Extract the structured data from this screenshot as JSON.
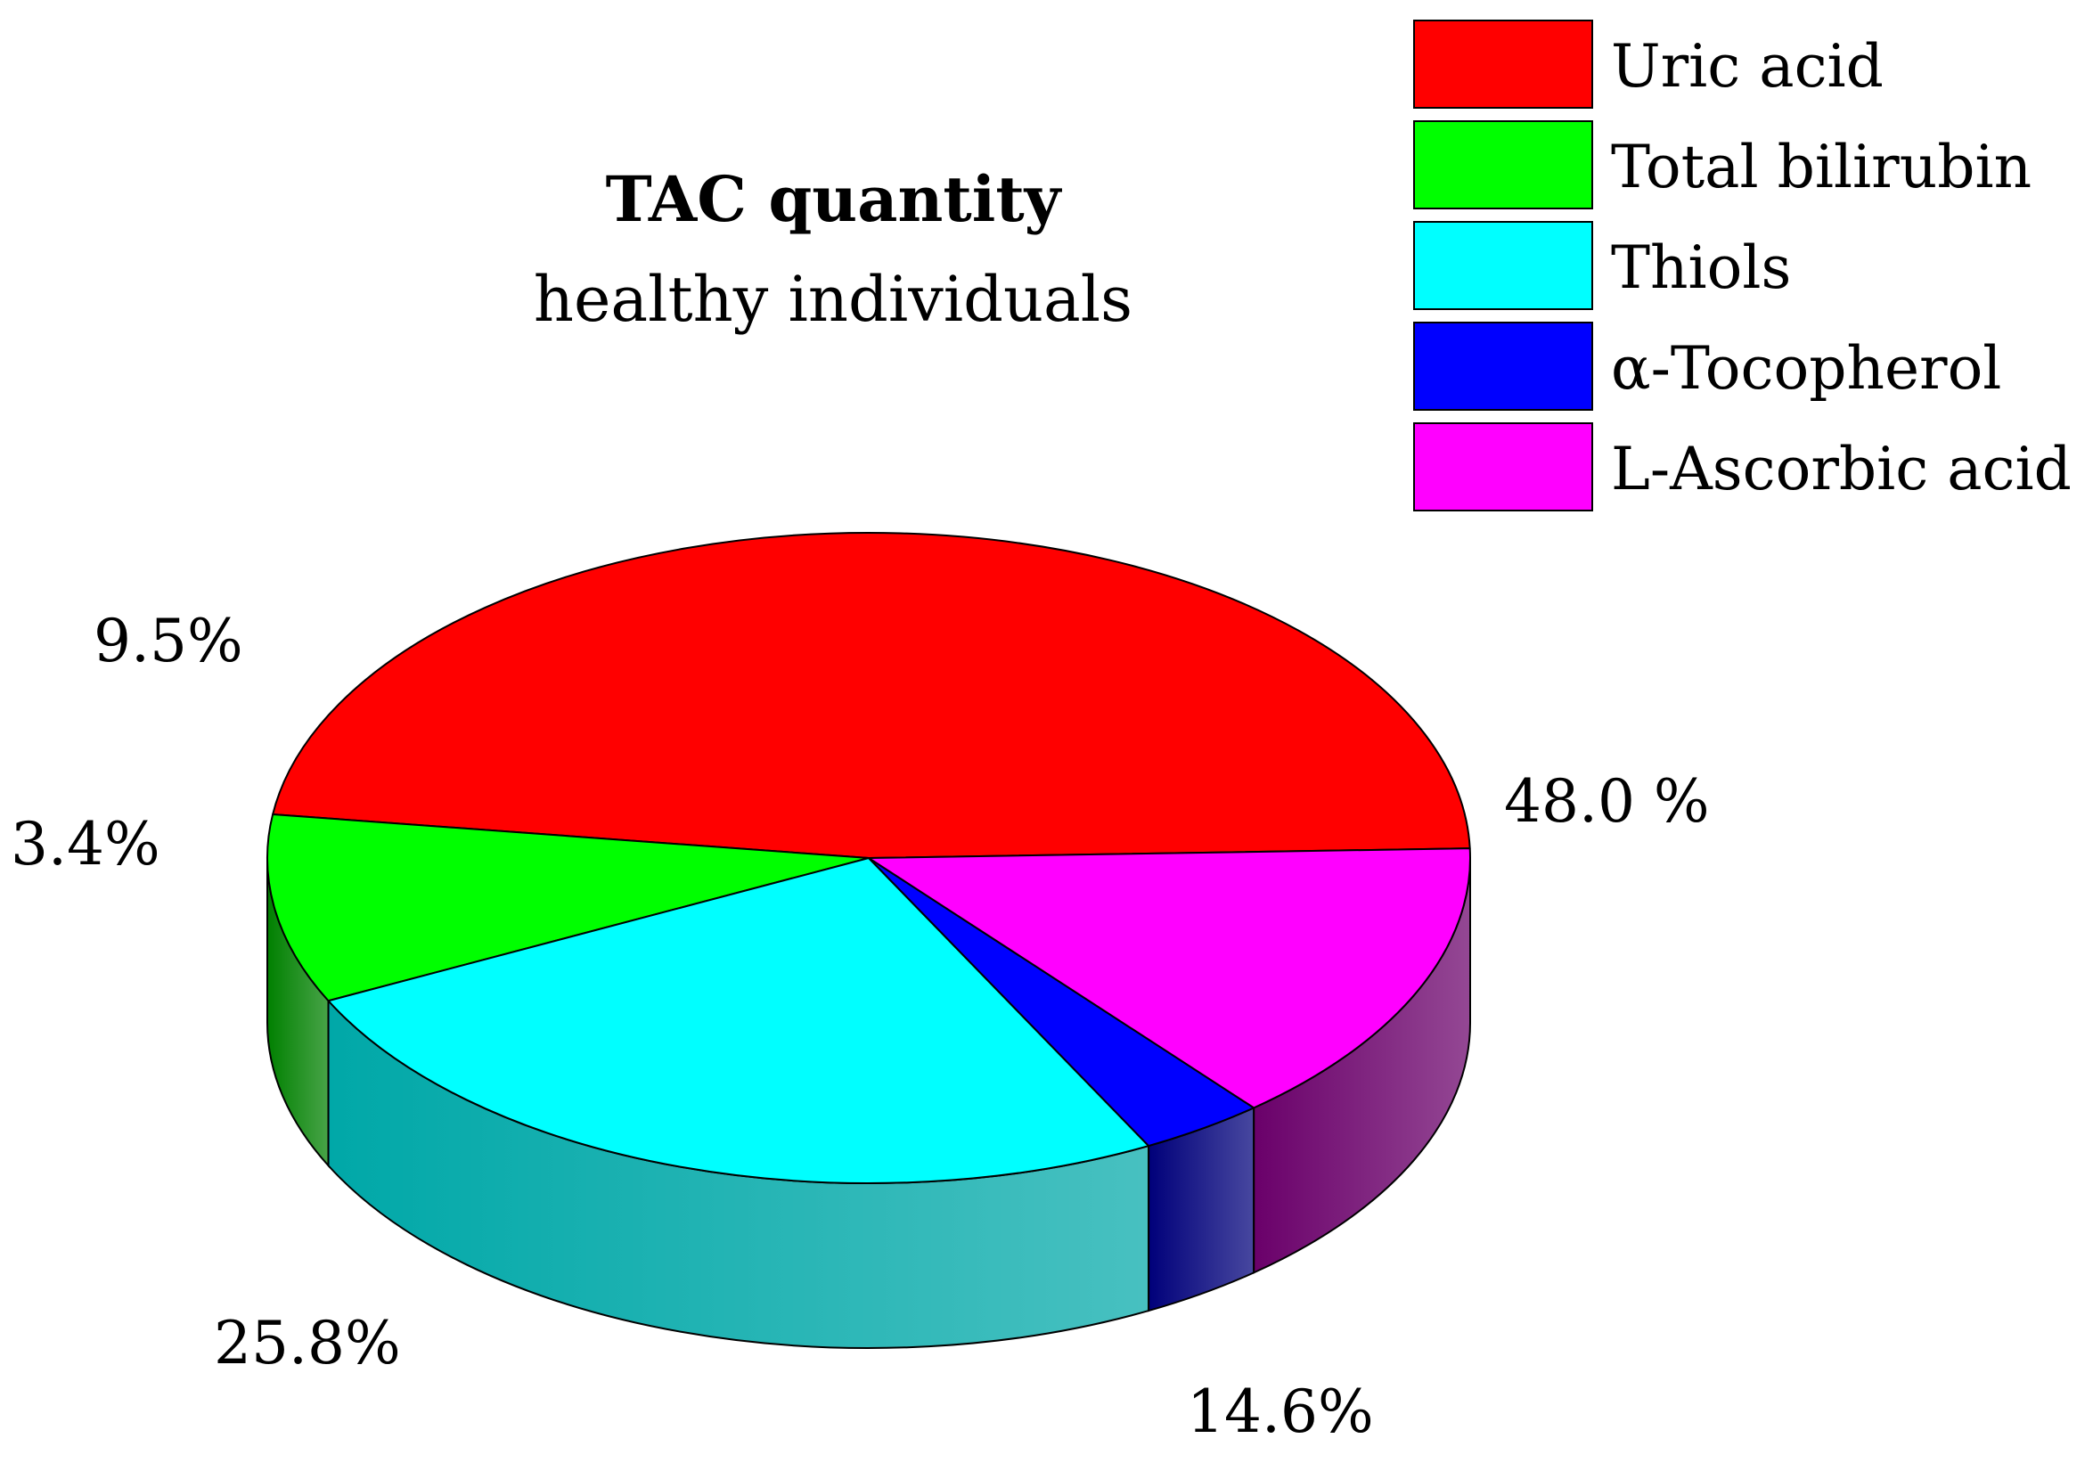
{
  "chart_data": {
    "type": "pie",
    "title": "TAC quantity",
    "subtitle": "healthy individuals",
    "legend_position": "top-right",
    "slices": [
      {
        "label": "Uric acid",
        "value": 48.0,
        "value_label": "48.0 %",
        "color": "#ff0000",
        "side_color": "#6a0000"
      },
      {
        "label": "Total bilirubin",
        "value": 9.5,
        "value_label": "9.5%",
        "color": "#00ff00",
        "side_color": "#008000"
      },
      {
        "label": "Thiols",
        "value": 25.8,
        "value_label": "25.8%",
        "color": "#00ffff",
        "side_color": "#00a8a8"
      },
      {
        "label": "α-Tocopherol",
        "value": 3.4,
        "value_label": "3.4%",
        "color": "#0000ff",
        "side_color": "#00007a"
      },
      {
        "label": "L-Ascorbic acid",
        "value": 14.6,
        "value_label": "14.6%",
        "color": "#ff00ff",
        "side_color": "#6a006a"
      }
    ]
  }
}
